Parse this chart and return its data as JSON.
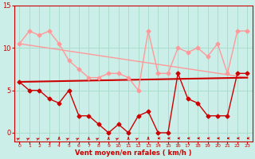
{
  "background_color": "#cceee8",
  "grid_color": "#aaddcc",
  "xlabel": "Vent moyen/en rafales ( km/h )",
  "xlim": [
    -0.5,
    23.5
  ],
  "ylim": [
    -1,
    15
  ],
  "yticks": [
    0,
    5,
    10,
    15
  ],
  "xticks": [
    0,
    1,
    2,
    3,
    4,
    5,
    6,
    7,
    8,
    9,
    10,
    11,
    12,
    13,
    14,
    15,
    16,
    17,
    18,
    19,
    20,
    21,
    22,
    23
  ],
  "light_series": {
    "x": [
      0,
      1,
      2,
      3,
      4,
      5,
      6,
      7,
      8,
      9,
      10,
      11,
      12,
      13,
      14,
      15,
      16,
      17,
      18,
      19,
      20,
      21,
      22,
      23
    ],
    "y": [
      10.5,
      12,
      11.5,
      12,
      10.5,
      8.5,
      7.5,
      6.5,
      6.5,
      7,
      7,
      6.5,
      5,
      12,
      7,
      7,
      10,
      9.5,
      10,
      9,
      10.5,
      7,
      12,
      12
    ],
    "color": "#ff9999",
    "lw": 1.0,
    "ms": 2.5
  },
  "dark_series": {
    "x": [
      0,
      1,
      2,
      3,
      4,
      5,
      6,
      7,
      8,
      9,
      10,
      11,
      12,
      13,
      14,
      15,
      16,
      17,
      18,
      19,
      20,
      21,
      22,
      23
    ],
    "y": [
      6,
      5,
      5,
      4,
      3.5,
      5,
      2,
      2,
      1,
      0,
      1,
      0,
      2,
      2.5,
      0,
      0,
      7,
      4,
      3.5,
      2,
      2,
      2,
      7,
      7
    ],
    "color": "#cc0000",
    "lw": 1.0,
    "ms": 2.5
  },
  "trend_light": {
    "x": [
      0,
      23
    ],
    "y": [
      10.5,
      6.5
    ],
    "color": "#ff9999",
    "lw": 1.0
  },
  "trend_dark": {
    "x": [
      0,
      23
    ],
    "y": [
      6.0,
      6.5
    ],
    "color": "#cc0000",
    "lw": 1.5
  },
  "wind_arrows": {
    "x": [
      0,
      1,
      2,
      3,
      4,
      5,
      6,
      7,
      8,
      9,
      10,
      11,
      12,
      13,
      14,
      15,
      16,
      17,
      18,
      19,
      20,
      21,
      22,
      23
    ],
    "angles": [
      45,
      45,
      45,
      45,
      0,
      45,
      45,
      0,
      45,
      0,
      45,
      0,
      45,
      0,
      270,
      270,
      270,
      270,
      270,
      270,
      270,
      270,
      270,
      270
    ]
  },
  "tick_color": "#cc0000",
  "label_color": "#cc0000",
  "spine_color": "#cc0000"
}
